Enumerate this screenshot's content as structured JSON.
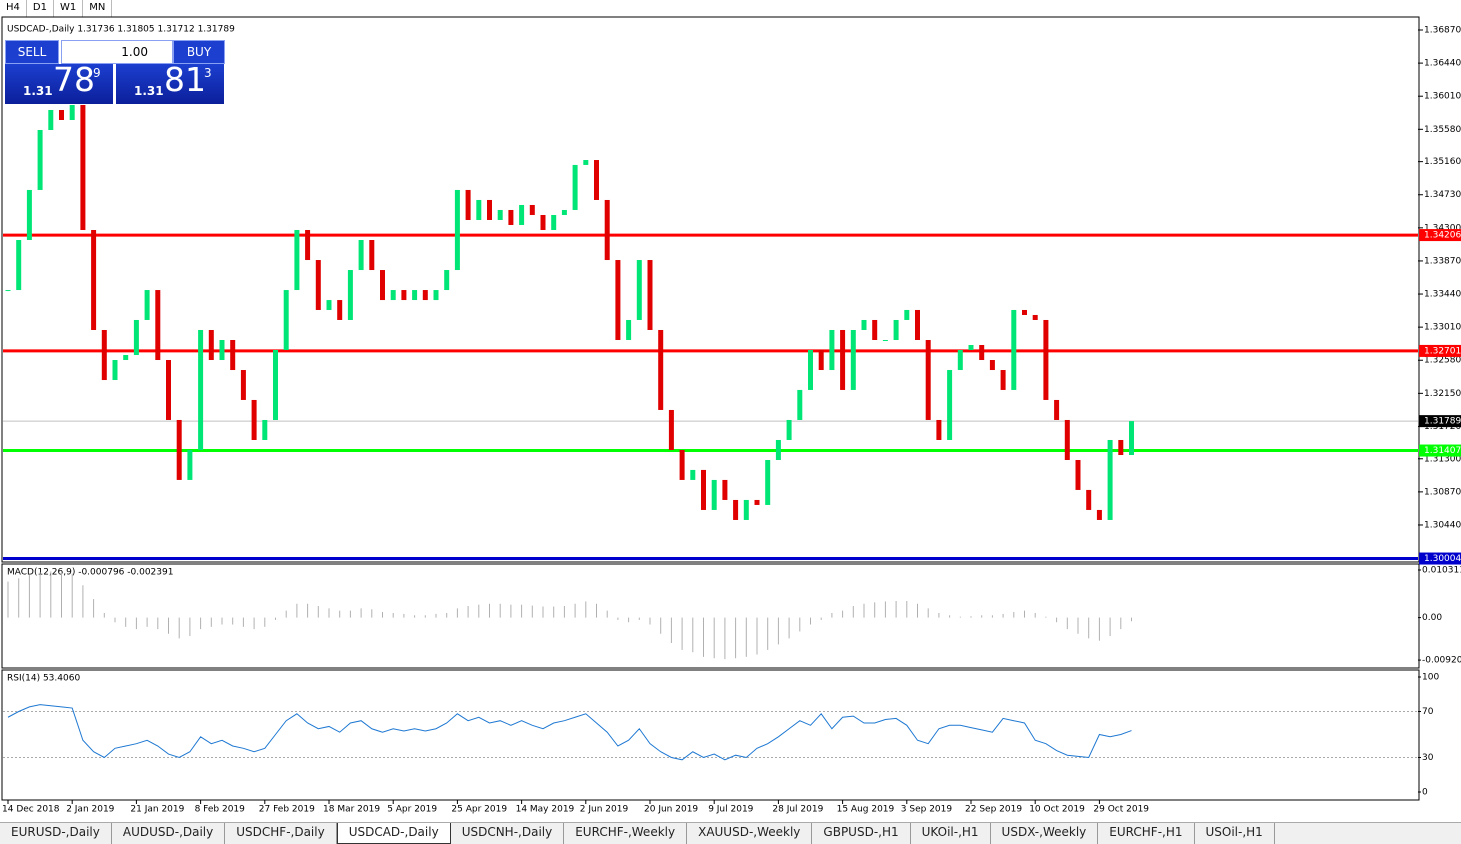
{
  "toolbar": {
    "timeframes": [
      "H4",
      "D1",
      "W1",
      "MN"
    ]
  },
  "trade_panel": {
    "sell": "SELL",
    "buy": "BUY",
    "lot": "1.00",
    "bid": {
      "big": "1.31",
      "pips": "78",
      "frac": "9"
    },
    "ask": {
      "big": "1.31",
      "pips": "81",
      "frac": "3"
    }
  },
  "chart_data": [
    {
      "type": "candlestick",
      "title": "USDCAD-,Daily 1.31736 1.31805 1.31712 1.31789",
      "close": [
        1.33492,
        1.34142,
        1.34792,
        1.35571,
        1.35831,
        1.35701,
        1.35896,
        1.34272,
        1.32973,
        1.32323,
        1.32583,
        1.32648,
        1.33103,
        1.33492,
        1.32583,
        1.31804,
        1.31025,
        1.31414,
        1.32973,
        1.32583,
        1.32843,
        1.32453,
        1.32064,
        1.31544,
        1.31804,
        1.32713,
        1.33492,
        1.34272,
        1.33882,
        1.33233,
        1.33362,
        1.33103,
        1.33752,
        1.34142,
        1.33752,
        1.33362,
        1.33492,
        1.33362,
        1.33492,
        1.33362,
        1.33492,
        1.33752,
        1.34792,
        1.34402,
        1.34662,
        1.34402,
        1.34532,
        1.34337,
        1.34597,
        1.34467,
        1.34272,
        1.34467,
        1.34532,
        1.35117,
        1.35181,
        1.34662,
        1.33882,
        1.32843,
        1.33103,
        1.33882,
        1.32973,
        1.31934,
        1.31414,
        1.31025,
        1.31155,
        1.30635,
        1.31025,
        1.30765,
        1.30505,
        1.30765,
        1.307,
        1.31284,
        1.31544,
        1.31804,
        1.32194,
        1.32713,
        1.32453,
        1.32973,
        1.32194,
        1.32973,
        1.33103,
        1.32843,
        1.32843,
        1.33103,
        1.33233,
        1.32843,
        1.31804,
        1.31544,
        1.32453,
        1.32713,
        1.32778,
        1.32583,
        1.32453,
        1.32194,
        1.33233,
        1.33168,
        1.33103,
        1.32064,
        1.31804,
        1.31284,
        1.30895,
        1.30635,
        1.30505,
        1.31544,
        1.31349,
        1.31789
      ],
      "up_color": "#00e676",
      "down_color": "#e00000",
      "ylim": [
        1.29959,
        1.37026
      ],
      "yticks": [
        {
          "value": 1.3687,
          "label": "1.36870"
        },
        {
          "value": 1.3644,
          "label": "1.36440"
        },
        {
          "value": 1.3601,
          "label": "1.36010"
        },
        {
          "value": 1.3558,
          "label": "1.35580"
        },
        {
          "value": 1.3516,
          "label": "1.35160"
        },
        {
          "value": 1.3473,
          "label": "1.34730"
        },
        {
          "value": 1.343,
          "label": "1.34300"
        },
        {
          "value": 1.3387,
          "label": "1.33870"
        },
        {
          "value": 1.3344,
          "label": "1.33440"
        },
        {
          "value": 1.3301,
          "label": "1.33010"
        },
        {
          "value": 1.3258,
          "label": "1.32580"
        },
        {
          "value": 1.3215,
          "label": "1.32150"
        },
        {
          "value": 1.3172,
          "label": "1.31720"
        },
        {
          "value": 1.313,
          "label": "1.31300"
        },
        {
          "value": 1.3087,
          "label": "1.30870"
        },
        {
          "value": 1.3044,
          "label": "1.30440"
        }
      ],
      "levels": [
        {
          "value": 1.34206,
          "color": "#ff0000"
        },
        {
          "value": 1.32701,
          "color": "#ff0000"
        },
        {
          "value": 1.31407,
          "color": "#00ff00"
        },
        {
          "value": 1.30004,
          "color": "#0000cc"
        }
      ],
      "current": 1.31789,
      "x_labels": [
        {
          "value": 0,
          "label": "14 Dec 2018"
        },
        {
          "value": 6,
          "label": "2 Jan 2019"
        },
        {
          "value": 12,
          "label": "21 Jan 2019"
        },
        {
          "value": 18,
          "label": "8 Feb 2019"
        },
        {
          "value": 24,
          "label": "27 Feb 2019"
        },
        {
          "value": 30,
          "label": "18 Mar 2019"
        },
        {
          "value": 36,
          "label": "5 Apr 2019"
        },
        {
          "value": 42,
          "label": "25 Apr 2019"
        },
        {
          "value": 48,
          "label": "14 May 2019"
        },
        {
          "value": 54,
          "label": "2 Jun 2019"
        },
        {
          "value": 60,
          "label": "20 Jun 2019"
        },
        {
          "value": 66,
          "label": "9 Jul 2019"
        },
        {
          "value": 72,
          "label": "28 Jul 2019"
        },
        {
          "value": 78,
          "label": "15 Aug 2019"
        },
        {
          "value": 84,
          "label": "3 Sep 2019"
        },
        {
          "value": 90,
          "label": "22 Sep 2019"
        },
        {
          "value": 96,
          "label": "10 Oct 2019"
        },
        {
          "value": 102,
          "label": "29 Oct 2019"
        }
      ]
    },
    {
      "type": "histogram",
      "title": "MACD(12,26,9) -0.000796 -0.002391",
      "color": "#b0b0b0",
      "values": [
        0.0078,
        0.0085,
        0.0092,
        0.0098,
        0.01,
        0.0098,
        0.0095,
        0.007,
        0.004,
        0.001,
        -0.001,
        -0.002,
        -0.0025,
        -0.002,
        -0.0025,
        -0.0035,
        -0.0045,
        -0.004,
        -0.0025,
        -0.002,
        -0.0015,
        -0.0015,
        -0.002,
        -0.0025,
        -0.002,
        -0.0005,
        0.0015,
        0.003,
        0.003,
        0.0025,
        0.002,
        0.0015,
        0.0015,
        0.002,
        0.0018,
        0.0012,
        0.001,
        0.0008,
        0.0005,
        0.0005,
        0.0008,
        0.001,
        0.002,
        0.0025,
        0.0028,
        0.003,
        0.003,
        0.0028,
        0.0028,
        0.0026,
        0.0024,
        0.0024,
        0.0025,
        0.003,
        0.0035,
        0.003,
        0.0015,
        -0.0005,
        -0.001,
        -0.0005,
        -0.0015,
        -0.0035,
        -0.0055,
        -0.007,
        -0.0075,
        -0.0085,
        -0.0088,
        -0.009,
        -0.0088,
        -0.0085,
        -0.008,
        -0.007,
        -0.0058,
        -0.0045,
        -0.003,
        -0.0015,
        -0.0005,
        0.001,
        0.0015,
        0.0025,
        0.003,
        0.0033,
        0.0035,
        0.0036,
        0.0036,
        0.003,
        0.002,
        0.001,
        0.0005,
        0.0002,
        0.0003,
        0.0005,
        0.0005,
        0.0008,
        0.0012,
        0.0015,
        0.001,
        0.0002,
        -0.001,
        -0.0025,
        -0.0035,
        -0.0045,
        -0.005,
        -0.004,
        -0.0025,
        -0.000796
      ],
      "ylim": [
        -0.0107,
        0.01139
      ],
      "yticks": [
        0.010311,
        {
          "value": 0,
          "label": "0.00"
        },
        -0.009203
      ]
    },
    {
      "type": "line",
      "title": "RSI(14) 53.4060",
      "color": "#1e78d2",
      "values": [
        65,
        70,
        74,
        76,
        75,
        74,
        73,
        45,
        35,
        30,
        38,
        40,
        42,
        45,
        40,
        33,
        30,
        35,
        48,
        42,
        45,
        40,
        38,
        35,
        38,
        50,
        62,
        68,
        60,
        55,
        57,
        52,
        60,
        62,
        55,
        52,
        55,
        53,
        55,
        53,
        55,
        60,
        68,
        62,
        65,
        60,
        62,
        58,
        62,
        58,
        55,
        60,
        62,
        65,
        68,
        60,
        52,
        40,
        45,
        55,
        42,
        35,
        30,
        28,
        35,
        30,
        33,
        28,
        32,
        30,
        38,
        42,
        48,
        55,
        62,
        58,
        68,
        55,
        65,
        66,
        60,
        60,
        63,
        64,
        58,
        45,
        42,
        55,
        58,
        58,
        56,
        54,
        52,
        64,
        62,
        60,
        45,
        42,
        36,
        32,
        31,
        30,
        50,
        48,
        50,
        53.406
      ],
      "ylim": [
        0,
        100
      ],
      "yticks": [
        100,
        70,
        30,
        0
      ],
      "levels": [
        70,
        30
      ]
    }
  ],
  "tabs": [
    "EURUSD-,Daily",
    "AUDUSD-,Daily",
    "USDCHF-,Daily",
    "USDCAD-,Daily",
    "USDCNH-,Daily",
    "EURCHF-,Weekly",
    "XAUUSD-,Weekly",
    "GBPUSD-,H1",
    "UKOil-,H1",
    "USDX-,Weekly",
    "EURCHF-,H1",
    "USOil-,H1"
  ],
  "active_tab": 3
}
